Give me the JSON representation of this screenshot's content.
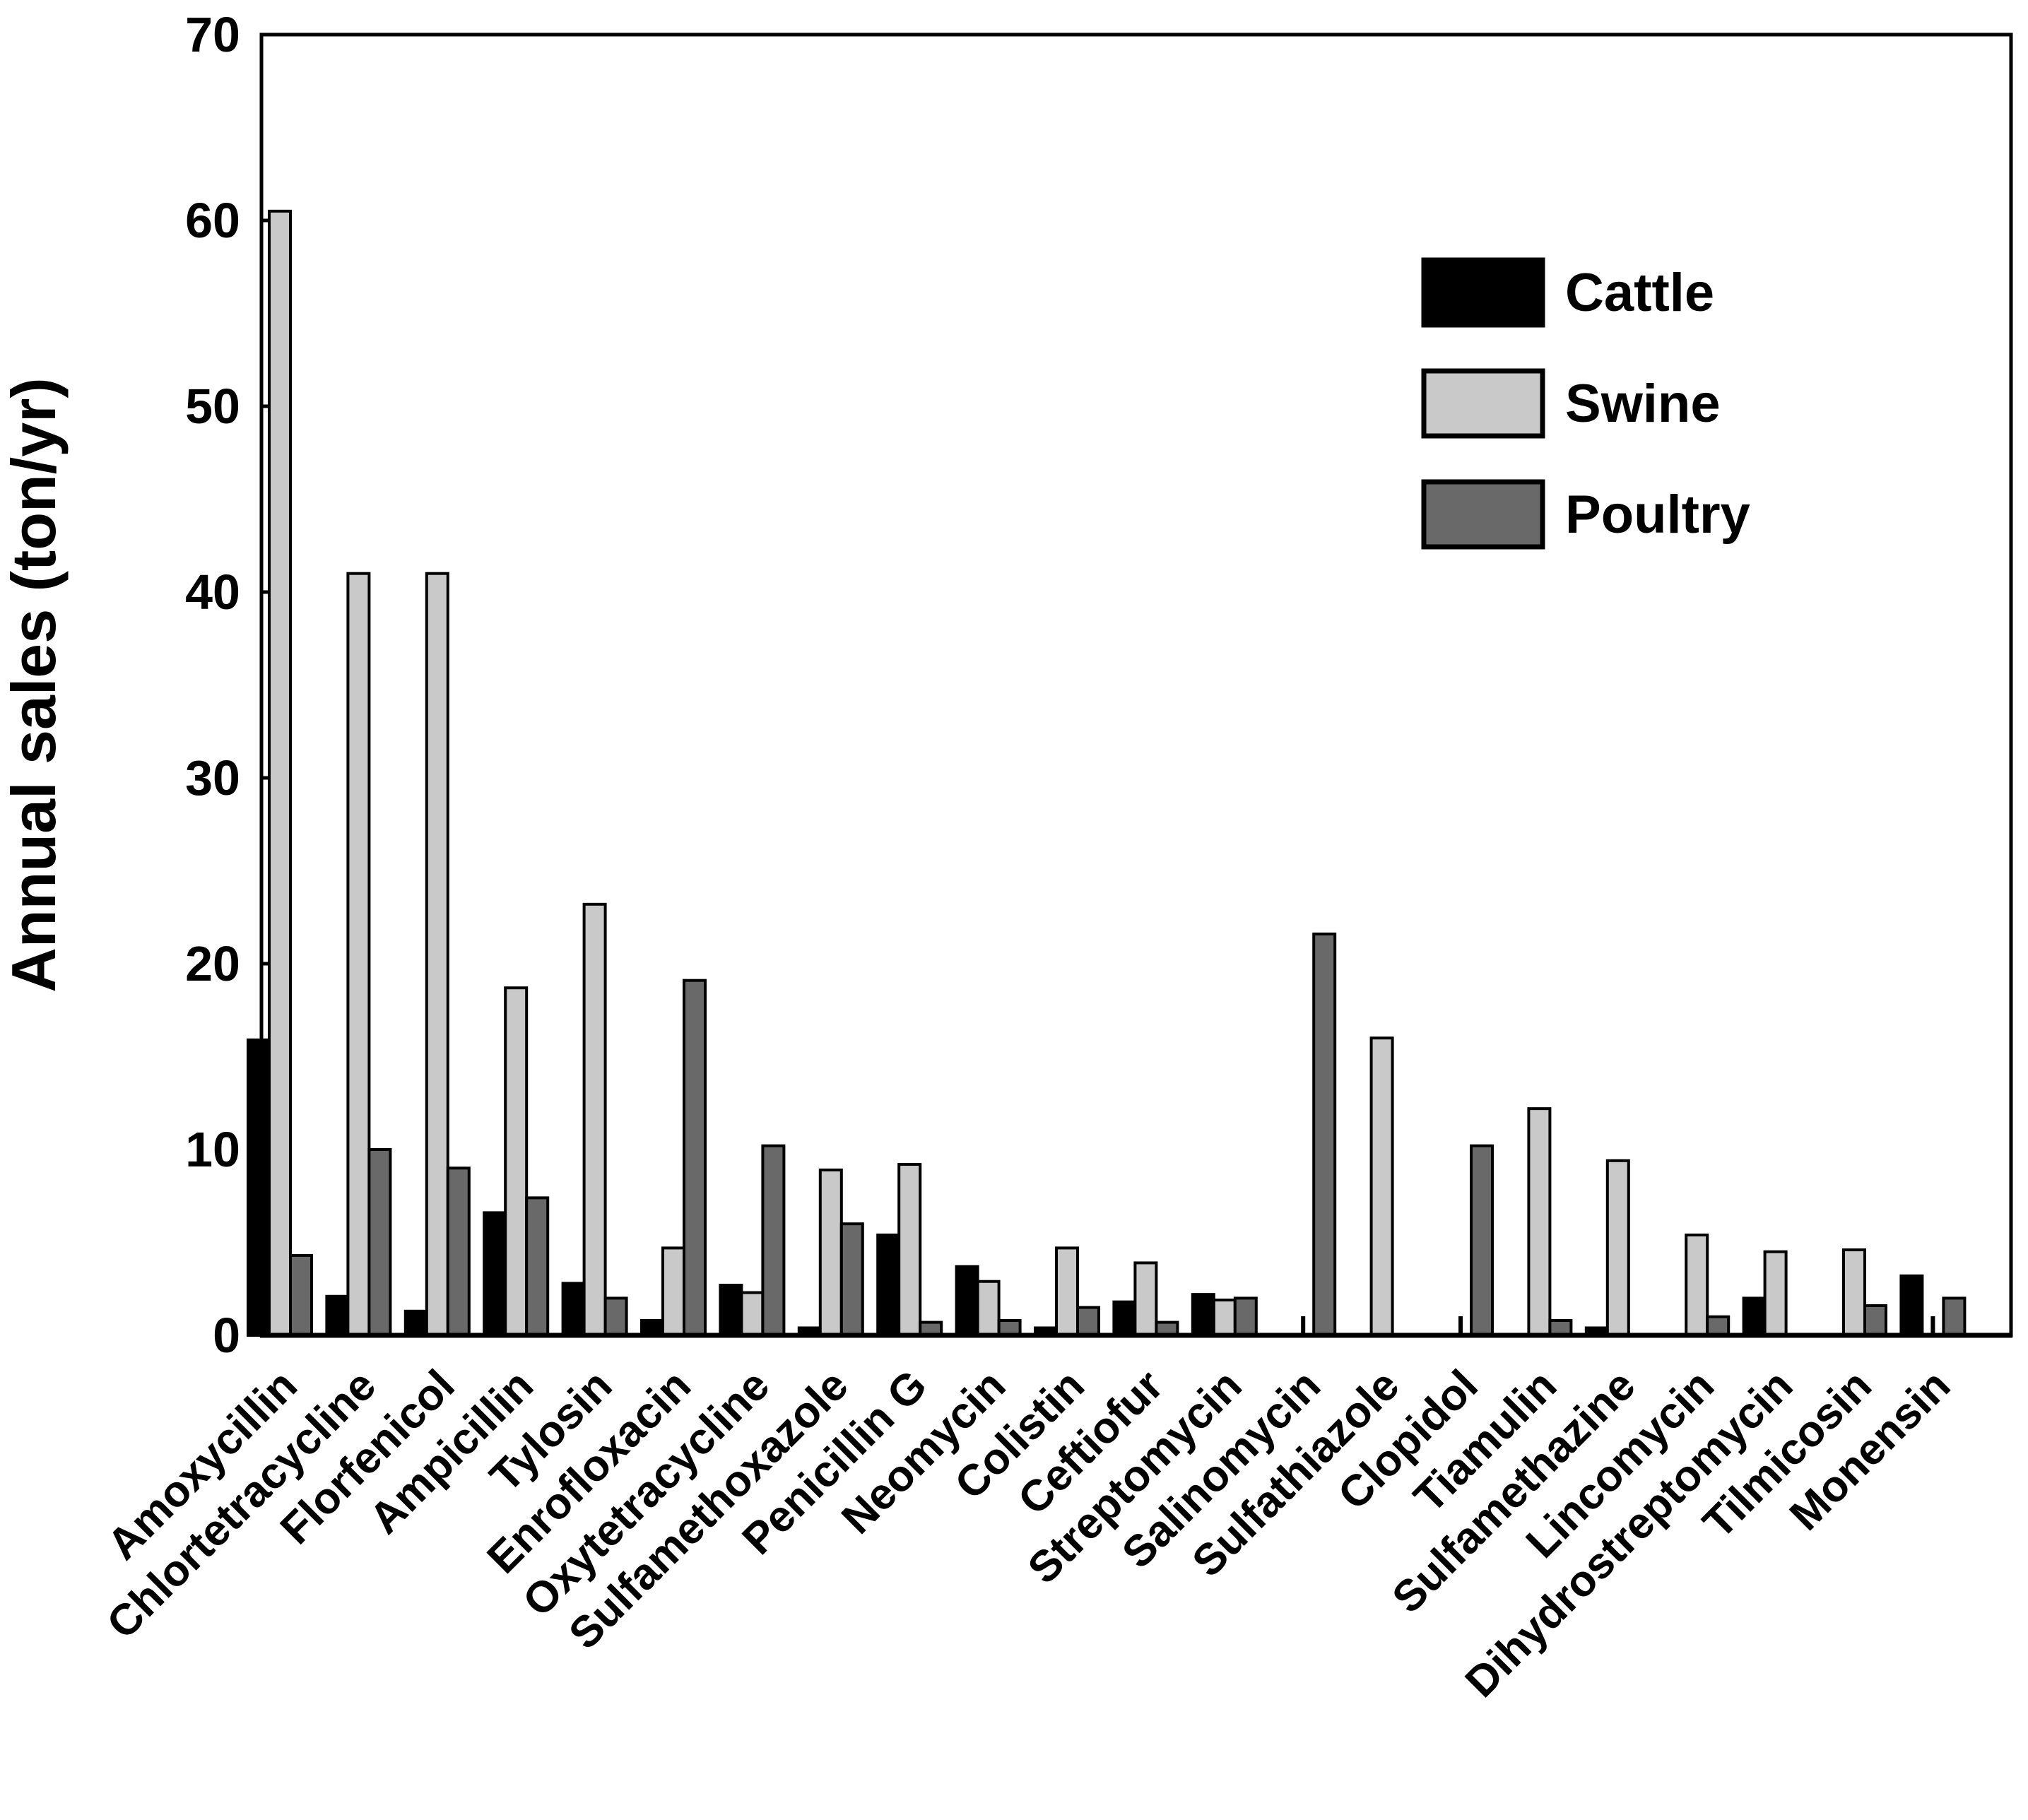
{
  "figure": {
    "background_color": "#ffffff",
    "axis_color": "#000000",
    "text_color": "#000000"
  },
  "chart_data": {
    "type": "bar",
    "title": "",
    "xlabel": "",
    "ylabel": "Annual sales (ton/yr)",
    "ylim": [
      0,
      70
    ],
    "ytick_step": 10,
    "ytick_labels": [
      "0",
      "10",
      "20",
      "30",
      "40",
      "50",
      "60",
      "70"
    ],
    "grid": false,
    "legend_position": "upper-right-inside",
    "categories": [
      "Amoxycillin",
      "Chlortetracycline",
      "Florfenicol",
      "Ampicillin",
      "Tylosin",
      "Enrofloxacin",
      "Oxytetracycline",
      "Sulfamethoxazole",
      "Penicillin G",
      "Neomycin",
      "Colistin",
      "Ceftiofur",
      "Streptomycin",
      "Salinomycin",
      "Sulfathiazole",
      "Clopidol",
      "Tiamulin",
      "Sulfamethazine",
      "Lincomycin",
      "Dihydrostreptomycin",
      "Tilmicosin",
      "Monensin"
    ],
    "series": [
      {
        "name": "Cattle",
        "color": "#000000",
        "values": [
          15.9,
          2.1,
          1.3,
          6.6,
          2.8,
          0.8,
          2.7,
          0.4,
          5.4,
          3.7,
          0.4,
          1.8,
          2.2,
          0,
          0,
          0,
          0,
          0.4,
          0,
          2.0,
          0,
          3.2
        ]
      },
      {
        "name": "Swine",
        "color": "#c9c9c9",
        "values": [
          60.5,
          41.0,
          41.0,
          18.7,
          23.2,
          4.7,
          2.3,
          8.9,
          9.2,
          2.9,
          4.7,
          3.9,
          1.9,
          0,
          16.0,
          0,
          12.2,
          9.4,
          5.4,
          4.5,
          4.6,
          0
        ]
      },
      {
        "name": "Poultry",
        "color": "#696969",
        "values": [
          4.3,
          10.0,
          9.0,
          7.4,
          2.0,
          19.1,
          10.2,
          6.0,
          0.7,
          0.8,
          1.5,
          0.7,
          2.0,
          21.6,
          0,
          10.2,
          0.8,
          0,
          1.0,
          0,
          1.6,
          2.0
        ]
      }
    ]
  }
}
